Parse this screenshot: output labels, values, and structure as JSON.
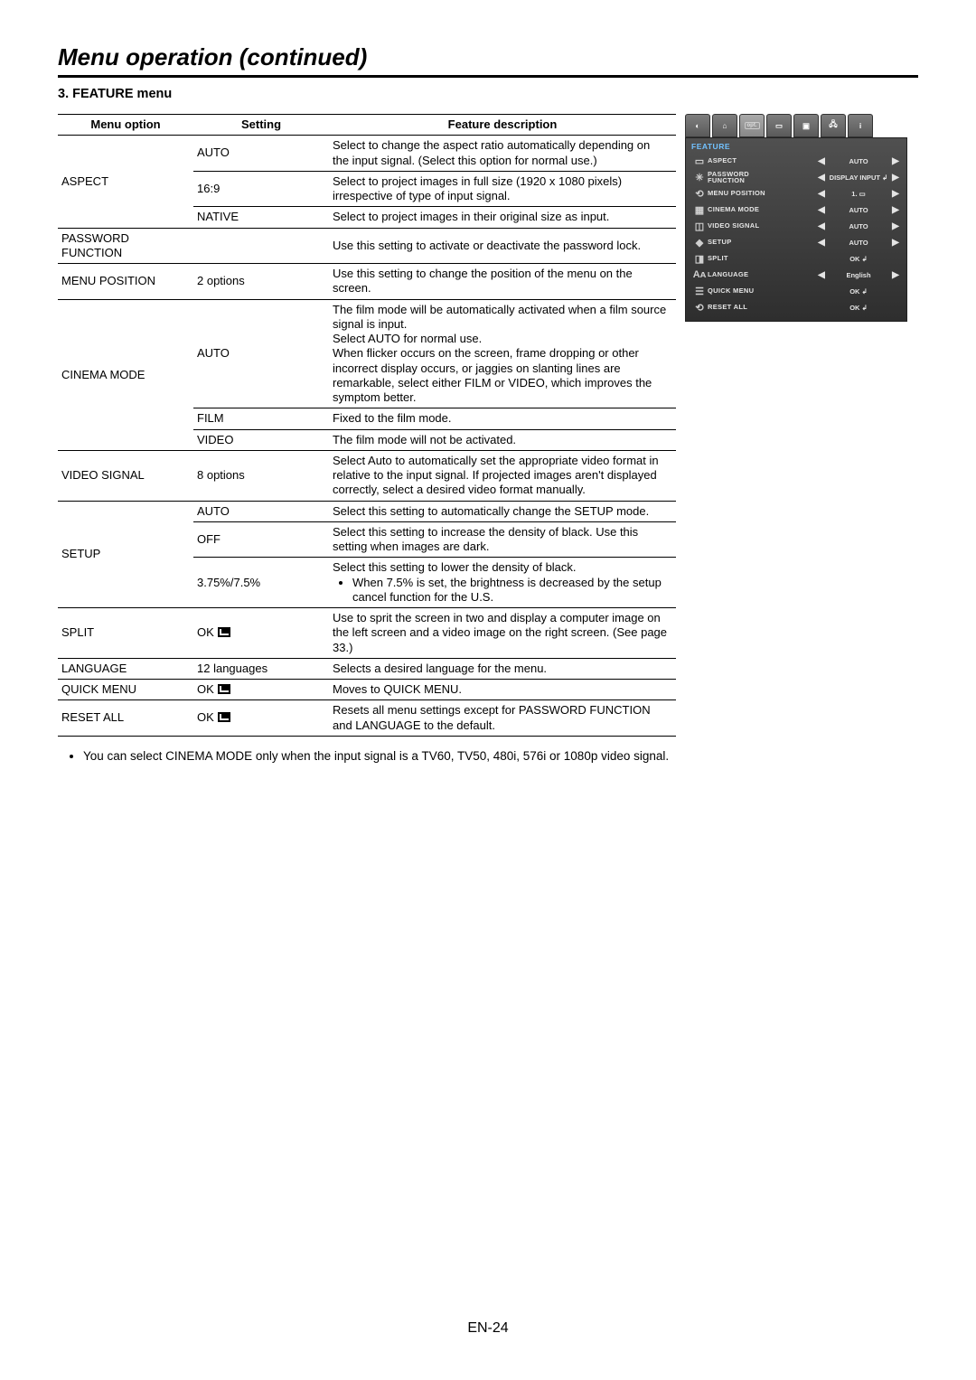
{
  "page_title": "Menu operation (continued)",
  "section_heading": "3. FEATURE menu",
  "table": {
    "headers": {
      "option": "Menu option",
      "setting": "Setting",
      "desc": "Feature description"
    },
    "rows": [
      {
        "option": "ASPECT",
        "option_rowspan": 3,
        "setting": "AUTO",
        "desc": "Select to change the aspect ratio automatically depending on the input signal. (Select this option for normal use.)"
      },
      {
        "setting": "16:9",
        "desc": "Select to project images in full size (1920 x 1080 pixels) irrespective of type of input signal."
      },
      {
        "setting": "NATIVE",
        "desc": "Select to project images in their original size as input."
      },
      {
        "option": "PASSWORD FUNCTION",
        "setting": "",
        "desc": "Use this setting to activate or deactivate the password lock."
      },
      {
        "option": "MENU POSITION",
        "setting": "2 options",
        "desc": "Use this setting to change the position of the menu on the screen."
      },
      {
        "option": "CINEMA MODE",
        "option_rowspan": 3,
        "setting": "AUTO",
        "desc": "The film mode will be automatically activated when a film source signal is input.\nSelect AUTO for normal use.\nWhen flicker occurs on the screen, frame dropping or other incorrect display occurs, or jaggies on slanting lines are remarkable, select either FILM or VIDEO, which improves the symptom better."
      },
      {
        "setting": "FILM",
        "desc": "Fixed to the film mode."
      },
      {
        "setting": "VIDEO",
        "desc": "The film mode will not be activated."
      },
      {
        "option": "VIDEO SIGNAL",
        "setting": "8 options",
        "desc": "Select Auto to automatically set the appropriate video format in relative to the input signal. If projected images aren't displayed correctly, select a desired video format manually."
      },
      {
        "option": "SETUP",
        "option_rowspan": 3,
        "setting": "AUTO",
        "desc": "Select this setting to automatically change the SETUP mode."
      },
      {
        "setting": "OFF",
        "desc": "Select this setting to increase the density of black. Use this setting when images are dark."
      },
      {
        "setting": "3.75%/7.5%",
        "desc": "Select this setting to lower the density of black.",
        "bullet": "When 7.5% is set, the brightness is decreased by the setup cancel function for the U.S."
      },
      {
        "option": "SPLIT",
        "setting_ok": true,
        "setting": "OK",
        "desc": "Use to sprit the screen in two and display a computer image on the left screen and a video image on the right screen. (See page 33.)"
      },
      {
        "option": "LANGUAGE",
        "setting": "12 languages",
        "desc": "Selects a desired language for the menu."
      },
      {
        "option": "QUICK MENU",
        "setting_ok": true,
        "setting": "OK",
        "desc": "Moves to QUICK MENU."
      },
      {
        "option": "RESET ALL",
        "setting_ok": true,
        "setting": "OK",
        "desc": "Resets all menu settings except for PASSWORD FUNCTION and LANGUAGE to the default."
      }
    ]
  },
  "note": "You can select CINEMA MODE only when the input signal is a TV60, TV50, 480i, 576i or 1080p video signal.",
  "osd": {
    "title": "FEATURE",
    "tabs": [
      "◐",
      "⌂",
      "opt",
      "▭",
      "▣",
      "🖧",
      "i"
    ],
    "rows": [
      {
        "icon": "▭",
        "label": "ASPECT",
        "left": true,
        "value": "AUTO",
        "right": true
      },
      {
        "icon": "✳",
        "label": "PASSWORD\nFUNCTION",
        "left": true,
        "value": "DISPLAY INPUT ↲",
        "right": true
      },
      {
        "icon": "⟲",
        "label": "MENU POSITION",
        "left": true,
        "value": "1. ▭",
        "right": true
      },
      {
        "icon": "▦",
        "label": "CINEMA MODE",
        "left": true,
        "value": "AUTO",
        "right": true
      },
      {
        "icon": "◫",
        "label": "VIDEO SIGNAL",
        "left": true,
        "value": "AUTO",
        "right": true
      },
      {
        "icon": "◆",
        "label": "SETUP",
        "left": true,
        "value": "AUTO",
        "right": true
      },
      {
        "icon": "◨",
        "label": "SPLIT",
        "left": false,
        "value": "OK ↲",
        "right": false
      },
      {
        "icon": "Aᴀ",
        "label": "LANGUAGE",
        "left": true,
        "value": "English",
        "right": true
      },
      {
        "icon": "☰",
        "label": "QUICK MENU",
        "left": false,
        "value": "OK ↲",
        "right": false
      },
      {
        "icon": "⟲",
        "label": "RESET ALL",
        "left": false,
        "value": "OK ↲",
        "right": false
      }
    ]
  },
  "page_number": "EN-24"
}
